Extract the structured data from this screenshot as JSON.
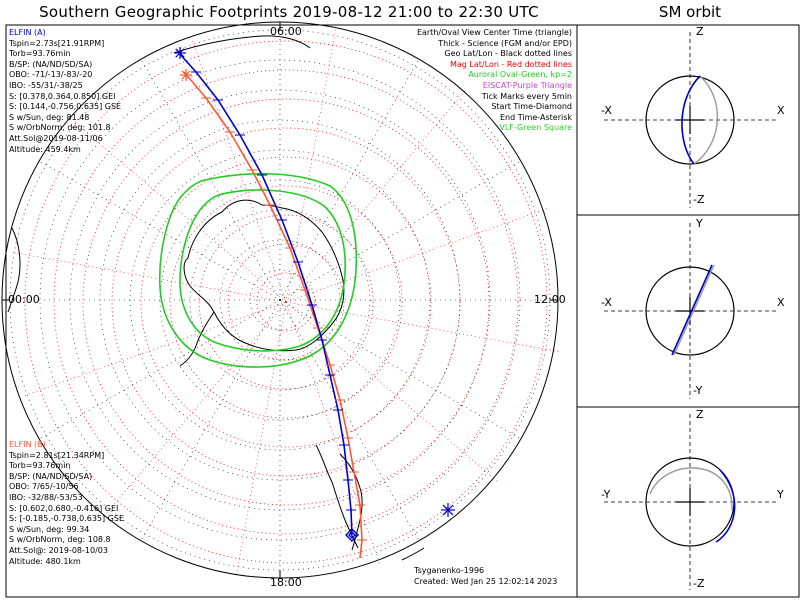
{
  "title": "Southern Geographic Footprints 2019-08-12 21:00 to 22:30 UTC",
  "sm_title": "SM orbit",
  "colors": {
    "elfin_a": "#0000cc",
    "elfin_b": "#ff5533",
    "geo": "#000000",
    "mag": "#ff0000",
    "auroral": "#22cc22",
    "eiscat": "#cc44cc",
    "vlf": "#33cc33"
  },
  "clock_labels": {
    "top": "06:00",
    "left": "00:00",
    "right": "12:00",
    "bottom": "18:00"
  },
  "elfin_a": {
    "header": "ELFIN (A)",
    "lines": [
      "Tspin=2.73s[21.91RPM]",
      "Torb=93.76min",
      "B/SP: (NA/ND/SD/SA)",
      "OBO: -71/-13/-83/-20",
      "IBO: -55/31/-38/25",
      "S: [0.378,0.364,0.850] GEI",
      "S: [0.144,-0.756,0.635] GSE",
      "S w/Sun, deg: 81.48",
      "S w/OrbNorm, deg: 101.8",
      "Att.Sol@2019-08-11/06",
      "Altitude: 459.4km"
    ]
  },
  "elfin_b": {
    "header": "ELFIN (B)",
    "lines": [
      "Tspin=2.81s[21.34RPM]",
      "Torb=93.76min",
      "B/SP: (NA/ND/SD/SA)",
      "OBO: 7/65/-10/56",
      "IBO: -32/88/-53/53",
      "S: [0.602,0.680,-0.416] GEI",
      "S: [-0.185,-0.738,0.635] GSE",
      "S w/Sun, deg: 99.34",
      "S w/OrbNorm, deg: 108.8",
      "Att.Sol@: 2019-08-10/03",
      "Altitude: 480.1km"
    ]
  },
  "legend": [
    {
      "text": "Earth/Oval View Center Time (triangle)",
      "color": "#000000"
    },
    {
      "text": "Thick - Science (FGM and/or EPD)",
      "color": "#000000"
    },
    {
      "text": "Geo Lat/Lon - Black dotted lines",
      "color": "#000000"
    },
    {
      "text": "Mag Lat/Lon - Red dotted lines",
      "color": "#ff0000"
    },
    {
      "text": "Auroral Oval-Green, kp=2",
      "color": "#22cc22"
    },
    {
      "text": "EISCAT-Purple Triangle",
      "color": "#cc44cc"
    },
    {
      "text": "Tick Marks every 5min",
      "color": "#000000"
    },
    {
      "text": "Start Time-Diamond",
      "color": "#000000"
    },
    {
      "text": "End Time-Asterisk",
      "color": "#000000"
    },
    {
      "text": "VLF-Green Square",
      "color": "#33cc33"
    }
  ],
  "credits": {
    "author": "Tsyganenko-1996",
    "created": "Created: Wed Jan 25 12:02:14 2023"
  },
  "sm_panels": [
    {
      "top": "Z",
      "bottom": "-Z",
      "left": "-X",
      "right": "X"
    },
    {
      "top": "Y",
      "bottom": "-Y",
      "left": "-X",
      "right": "X"
    },
    {
      "top": "Z",
      "bottom": "-Z",
      "left": "-Y",
      "right": "Y"
    }
  ],
  "chart_data": {
    "type": "scatter",
    "title": "Southern Geographic Footprints 2019-08-12 21:00 to 22:30 UTC",
    "projection": "south polar stereographic",
    "series": [
      {
        "name": "ELFIN (A)",
        "color": "#0000cc"
      },
      {
        "name": "ELFIN (B)",
        "color": "#ff5533"
      }
    ]
  }
}
